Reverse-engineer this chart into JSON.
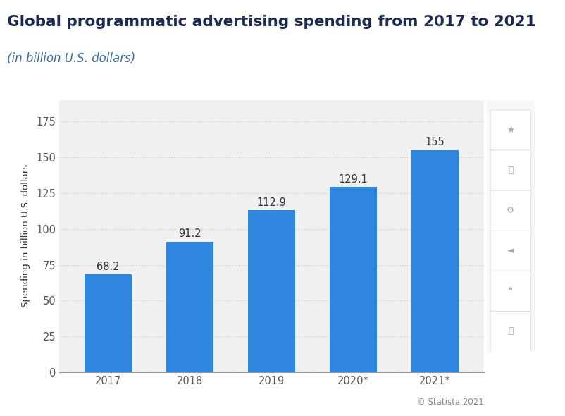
{
  "title": "Global programmatic advertising spending from 2017 to 2021",
  "subtitle": "(in billion U.S. dollars)",
  "categories": [
    "2017",
    "2018",
    "2019",
    "2020*",
    "2021*"
  ],
  "values": [
    68.2,
    91.2,
    112.9,
    129.1,
    155
  ],
  "bar_color": "#2e86de",
  "ylabel": "Spending in billion U.S. dollars",
  "ylim": [
    0,
    190
  ],
  "yticks": [
    0,
    25,
    50,
    75,
    100,
    125,
    150,
    175
  ],
  "title_color": "#1c2951",
  "subtitle_color": "#3d6b9e",
  "background_color": "#ffffff",
  "plot_bg_color": "#f0f0f0",
  "grid_color": "#cccccc",
  "bar_label_color": "#333333",
  "tick_color": "#555555",
  "copyright_text": "© Statista 2021",
  "title_fontsize": 15.5,
  "subtitle_fontsize": 12,
  "label_fontsize": 10.5,
  "tick_fontsize": 10.5,
  "ylabel_fontsize": 9.5,
  "copyright_fontsize": 8.5
}
